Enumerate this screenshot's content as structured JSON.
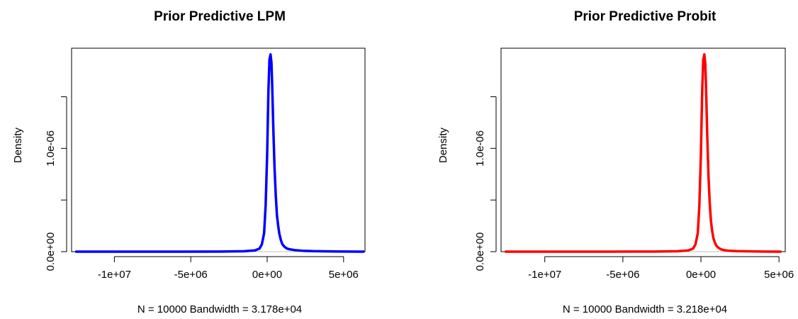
{
  "chart_data": [
    {
      "type": "line",
      "title": "Prior Predictive LPM",
      "xlabel": "N = 10000   Bandwidth = 3.178e+04",
      "ylabel": "Density",
      "xlim": [
        -12800000,
        6400000
      ],
      "ylim": [
        0,
        1.97e-06
      ],
      "x_ticks": [
        {
          "value": -10000000,
          "label": "-1e+07"
        },
        {
          "value": -5000000,
          "label": "-5e+06"
        },
        {
          "value": 0,
          "label": "0e+00"
        },
        {
          "value": 5000000,
          "label": "5e+06"
        }
      ],
      "y_ticks": [
        {
          "value": 0,
          "label": "0.0e+00"
        },
        {
          "value": 5e-07,
          "label": ""
        },
        {
          "value": 1e-06,
          "label": "1.0e-06"
        },
        {
          "value": 1.5e-06,
          "label": ""
        }
      ],
      "grid": false,
      "color": "#0000ff",
      "series": [
        {
          "x": [
            -12500000,
            -9000000,
            -6000000,
            -3000000,
            -1500000,
            -800000,
            -500000,
            -350000,
            -200000,
            -100000,
            0,
            80000,
            150000,
            220000,
            280000,
            330000,
            400000,
            480000,
            560000,
            640000,
            720000,
            800000,
            900000,
            1000000,
            1150000,
            1300000,
            1500000,
            1800000,
            2300000,
            3000000,
            4500000,
            6300000
          ],
          "y": [
            0,
            0,
            0,
            1e-09,
            4e-09,
            1.2e-08,
            3e-08,
            7e-08,
            1.8e-07,
            4.5e-07,
            9.5e-07,
            1.55e-06,
            1.86e-06,
            1.91e-06,
            1.83e-06,
            1.6e-06,
            1.2e-06,
            8.2e-07,
            5.5e-07,
            3.5e-07,
            2.5e-07,
            1.7e-07,
            1.1e-07,
            7e-08,
            4.5e-08,
            3e-08,
            2.2e-08,
            1.5e-08,
            9e-09,
            5e-09,
            2e-09,
            0
          ]
        }
      ]
    },
    {
      "type": "line",
      "title": "Prior Predictive Probit",
      "xlabel": "N = 10000   Bandwidth = 3.218e+04",
      "ylabel": "Density",
      "xlim": [
        -12800000,
        5400000
      ],
      "ylim": [
        0,
        1.97e-06
      ],
      "x_ticks": [
        {
          "value": -10000000,
          "label": "-1e+07"
        },
        {
          "value": -5000000,
          "label": "-5e+06"
        },
        {
          "value": 0,
          "label": "0e+00"
        },
        {
          "value": 5000000,
          "label": "5e+06"
        }
      ],
      "y_ticks": [
        {
          "value": 0,
          "label": "0.0e+00"
        },
        {
          "value": 5e-07,
          "label": ""
        },
        {
          "value": 1e-06,
          "label": "1.0e-06"
        },
        {
          "value": 1.5e-06,
          "label": ""
        }
      ],
      "grid": false,
      "color": "#ff0000",
      "series": [
        {
          "x": [
            -12500000,
            -9000000,
            -6000000,
            -3000000,
            -1500000,
            -800000,
            -500000,
            -350000,
            -200000,
            -100000,
            0,
            80000,
            150000,
            220000,
            280000,
            330000,
            400000,
            480000,
            560000,
            640000,
            720000,
            800000,
            900000,
            1000000,
            1150000,
            1300000,
            1500000,
            1800000,
            2300000,
            3000000,
            4000000,
            5100000
          ],
          "y": [
            0,
            0,
            0,
            1e-09,
            4e-09,
            1.2e-08,
            3e-08,
            7e-08,
            1.8e-07,
            4.5e-07,
            9.5e-07,
            1.55e-06,
            1.86e-06,
            1.91e-06,
            1.82e-06,
            1.58e-06,
            1.15e-06,
            7.5e-07,
            4.8e-07,
            3e-07,
            2e-07,
            1.3e-07,
            8.5e-08,
            5.5e-08,
            3.5e-08,
            2.2e-08,
            1.4e-08,
            9e-09,
            5e-09,
            3e-09,
            1e-09,
            0
          ]
        }
      ]
    }
  ]
}
